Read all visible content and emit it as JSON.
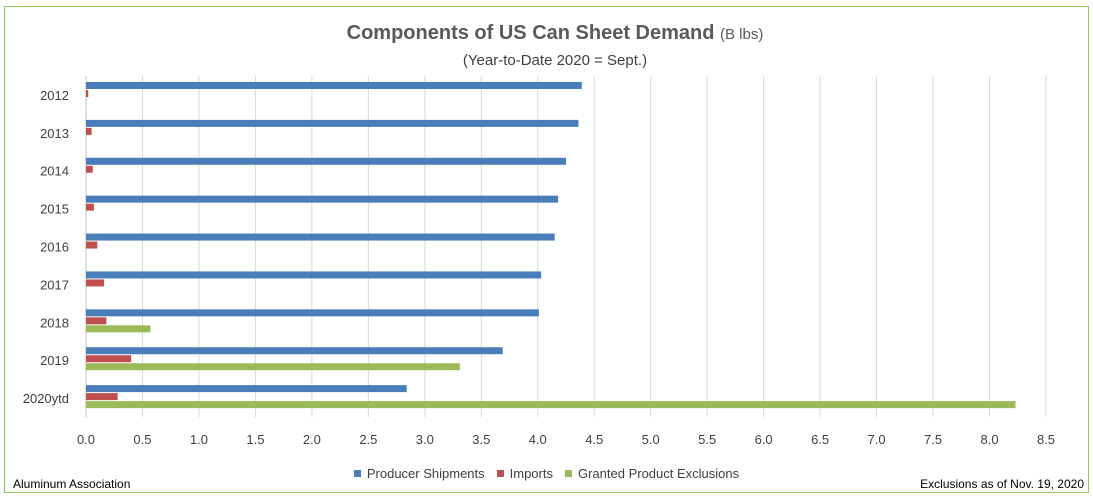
{
  "chart_data": {
    "type": "bar",
    "orientation": "horizontal",
    "title": "Components of US Can Sheet Demand",
    "title_unit": "(B lbs)",
    "subtitle": "(Year-to-Date 2020 = Sept.)",
    "categories": [
      "2012",
      "2013",
      "2014",
      "2015",
      "2016",
      "2017",
      "2018",
      "2019",
      "2020ytd"
    ],
    "series": [
      {
        "name": "Producer Shipments",
        "color": "#4a7ebb",
        "values": [
          4.39,
          4.36,
          4.25,
          4.18,
          4.15,
          4.03,
          4.01,
          3.69,
          2.84
        ]
      },
      {
        "name": "Imports",
        "color": "#c0504d",
        "values": [
          0.02,
          0.05,
          0.06,
          0.07,
          0.1,
          0.16,
          0.18,
          0.4,
          0.28
        ]
      },
      {
        "name": "Granted Product Exclusions",
        "color": "#9bbb59",
        "values": [
          0,
          0,
          0,
          0,
          0,
          0,
          0.57,
          3.31,
          8.23
        ]
      }
    ],
    "xlim": [
      0,
      8.5
    ],
    "xticks": [
      "0.0",
      "0.5",
      "1.0",
      "1.5",
      "2.0",
      "2.5",
      "3.0",
      "3.5",
      "4.0",
      "4.5",
      "5.0",
      "5.5",
      "6.0",
      "6.5",
      "7.0",
      "7.5",
      "8.0",
      "8.5"
    ],
    "grid": "vertical",
    "legend_position": "bottom"
  },
  "footer": {
    "source": "Aluminum Association",
    "note": "Exclusions as of Nov. 19, 2020"
  }
}
